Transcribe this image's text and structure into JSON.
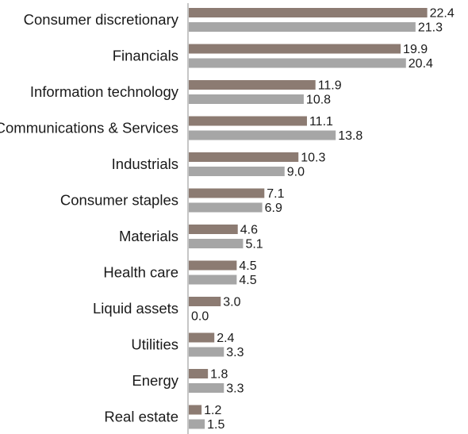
{
  "chart_data": {
    "type": "bar",
    "orientation": "horizontal",
    "title": "",
    "xlabel": "",
    "ylabel": "",
    "grid": false,
    "legend": "none",
    "xlim": [
      0,
      24
    ],
    "categories": [
      "Consumer discretionary",
      "Financials",
      "Information technology",
      "Communications & Services",
      "Industrials",
      "Consumer staples",
      "Materials",
      "Health care",
      "Liquid assets",
      "Utilities",
      "Energy",
      "Real estate"
    ],
    "series": [
      {
        "color": "#8c7b72",
        "values": [
          22.4,
          19.9,
          11.9,
          11.1,
          10.3,
          7.1,
          4.6,
          4.5,
          3.0,
          2.4,
          1.8,
          1.2
        ],
        "labels": [
          "22.4",
          "19.9",
          "11.9",
          "11.1",
          "10.3",
          "7.1",
          "4.6",
          "4.5",
          "3.0",
          "2.4",
          "1.8",
          "1.2"
        ]
      },
      {
        "color": "#a6a6a6",
        "values": [
          21.3,
          20.4,
          10.8,
          13.8,
          9.0,
          6.9,
          5.1,
          4.5,
          0.0,
          3.3,
          3.3,
          1.5
        ],
        "labels": [
          "21.3",
          "20.4",
          "10.8",
          "13.8",
          "9.0",
          "6.9",
          "5.1",
          "4.5",
          "0.0",
          "3.3",
          "3.3",
          "1.5"
        ]
      }
    ]
  }
}
